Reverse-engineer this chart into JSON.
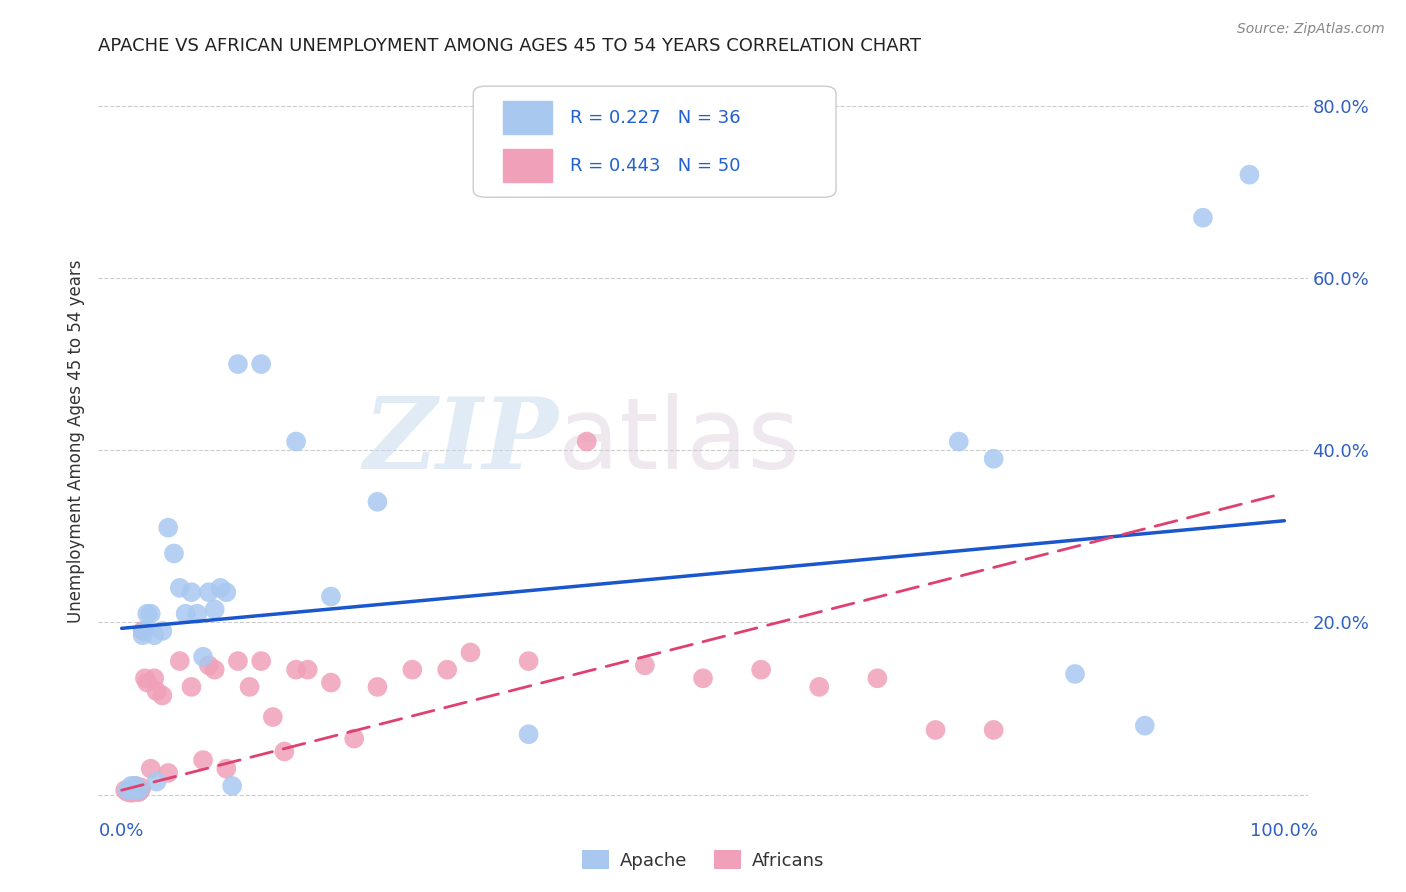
{
  "title": "APACHE VS AFRICAN UNEMPLOYMENT AMONG AGES 45 TO 54 YEARS CORRELATION CHART",
  "source": "Source: ZipAtlas.com",
  "ylabel": "Unemployment Among Ages 45 to 54 years",
  "xlim": [
    -0.02,
    1.02
  ],
  "ylim": [
    -0.02,
    0.84
  ],
  "xticks": [
    0.0,
    0.2,
    0.4,
    0.6,
    0.8,
    1.0
  ],
  "xticklabels": [
    "0.0%",
    "",
    "",
    "",
    "",
    "100.0%"
  ],
  "yticks": [
    0.0,
    0.2,
    0.4,
    0.6,
    0.8
  ],
  "yticklabels": [
    "",
    "20.0%",
    "40.0%",
    "60.0%",
    "80.0%"
  ],
  "apache_R": 0.227,
  "apache_N": 36,
  "africans_R": 0.443,
  "africans_N": 50,
  "apache_color": "#a8c8f0",
  "africans_color": "#f0a0b8",
  "apache_line_color": "#1a56cc",
  "africans_line_color": "#e04070",
  "watermark_zip": "ZIP",
  "watermark_atlas": "atlas",
  "apache_x": [
    0.005,
    0.008,
    0.01,
    0.012,
    0.015,
    0.018,
    0.02,
    0.022,
    0.025,
    0.028,
    0.03,
    0.035,
    0.04,
    0.045,
    0.05,
    0.055,
    0.06,
    0.065,
    0.07,
    0.075,
    0.08,
    0.085,
    0.09,
    0.095,
    0.1,
    0.12,
    0.15,
    0.18,
    0.22,
    0.35,
    0.72,
    0.75,
    0.82,
    0.88,
    0.93,
    0.97
  ],
  "apache_y": [
    0.005,
    0.01,
    0.005,
    0.01,
    0.005,
    0.185,
    0.19,
    0.21,
    0.21,
    0.185,
    0.015,
    0.19,
    0.31,
    0.28,
    0.24,
    0.21,
    0.235,
    0.21,
    0.16,
    0.235,
    0.215,
    0.24,
    0.235,
    0.01,
    0.5,
    0.5,
    0.41,
    0.23,
    0.34,
    0.07,
    0.41,
    0.39,
    0.14,
    0.08,
    0.67,
    0.72
  ],
  "africans_x": [
    0.003,
    0.005,
    0.007,
    0.008,
    0.009,
    0.01,
    0.011,
    0.012,
    0.013,
    0.014,
    0.015,
    0.016,
    0.017,
    0.018,
    0.019,
    0.02,
    0.022,
    0.025,
    0.028,
    0.03,
    0.035,
    0.04,
    0.05,
    0.06,
    0.07,
    0.075,
    0.08,
    0.09,
    0.1,
    0.11,
    0.12,
    0.13,
    0.14,
    0.15,
    0.16,
    0.18,
    0.2,
    0.22,
    0.25,
    0.28,
    0.3,
    0.35,
    0.4,
    0.45,
    0.5,
    0.55,
    0.6,
    0.65,
    0.7,
    0.75
  ],
  "africans_y": [
    0.005,
    0.003,
    0.005,
    0.002,
    0.008,
    0.003,
    0.005,
    0.01,
    0.003,
    0.005,
    0.003,
    0.005,
    0.008,
    0.19,
    0.19,
    0.135,
    0.13,
    0.03,
    0.135,
    0.12,
    0.115,
    0.025,
    0.155,
    0.125,
    0.04,
    0.15,
    0.145,
    0.03,
    0.155,
    0.125,
    0.155,
    0.09,
    0.05,
    0.145,
    0.145,
    0.13,
    0.065,
    0.125,
    0.145,
    0.145,
    0.165,
    0.155,
    0.41,
    0.15,
    0.135,
    0.145,
    0.125,
    0.135,
    0.075,
    0.075
  ],
  "background_color": "#ffffff",
  "grid_color": "#cccccc",
  "apache_line_x0": 0.0,
  "apache_line_y0": 0.193,
  "apache_line_x1": 1.0,
  "apache_line_y1": 0.318,
  "africans_line_x0": 0.0,
  "africans_line_y0": 0.005,
  "africans_line_x1": 1.0,
  "africans_line_y1": 0.35
}
